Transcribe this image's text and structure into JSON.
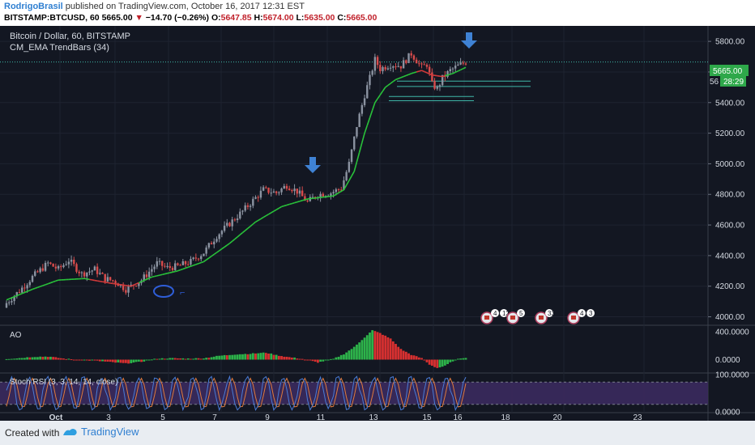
{
  "header": {
    "author": "RodrigoBrasil",
    "published_text": "published on TradingView.com, October 16, 2017 12:31 EST",
    "symbol": "BITSTAMP:BTCUSD, 60",
    "last": "5665.00",
    "change": "−14.70 (−0.26%)",
    "open_label": "O:",
    "open": "5647.85",
    "high_label": "H:",
    "high": "5674.00",
    "low_label": "L:",
    "low": "5635.00",
    "close_label": "C:",
    "close": "5665.00"
  },
  "legend": {
    "line1": "Bitcoin / Dollar, 60, BITSTAMP",
    "line2": "CM_EMA TrendBars (34)"
  },
  "price_badge": {
    "price": "5665.00",
    "prefix": "56",
    "countdown": "28:29"
  },
  "ao_label": "AO",
  "stoch_label": "Stoch RSI (3, 3, 14, 14, close)",
  "footer": {
    "created_with": "Created with",
    "brand": "TradingView"
  },
  "colors": {
    "background": "#131722",
    "up": "#8b93a1",
    "down": "#d84b4b",
    "ema": "#29c23a",
    "ema_down": "#d33a3a",
    "ao_up": "#2db34a",
    "ao_down": "#d83030",
    "stoch_band": "#3b2a5e",
    "stoch_k": "#4a7bd6",
    "stoch_d": "#e07a3c",
    "arrow": "#3f82d4"
  },
  "badges": [
    {
      "label": "4"
    },
    {
      "label": "12"
    },
    {
      "label": "5"
    },
    {
      "label": "33"
    },
    {
      "label": "4"
    },
    {
      "label": "3"
    }
  ],
  "chart_data": {
    "type": "candlestick",
    "price_ticks": [
      "5800.00",
      "5600.00",
      "5400.00",
      "5200.00",
      "5000.00",
      "4800.00",
      "4600.00",
      "4400.00",
      "4200.00",
      "4000.00"
    ],
    "ao_ticks": [
      "400.0000",
      "0.0000"
    ],
    "stoch_ticks": [
      "100.0000",
      "0.0000"
    ],
    "x_ticks": [
      "Oct",
      "3",
      "5",
      "7",
      "9",
      "11",
      "13",
      "15",
      "16",
      "18",
      "20",
      "23"
    ],
    "ylim": [
      3950,
      5880
    ],
    "close_key": [
      [
        0,
        4090
      ],
      [
        5,
        4170
      ],
      [
        10,
        4260
      ],
      [
        16,
        4350
      ],
      [
        20,
        4310
      ],
      [
        24,
        4370
      ],
      [
        29,
        4280
      ],
      [
        34,
        4310
      ],
      [
        38,
        4250
      ],
      [
        42,
        4230
      ],
      [
        46,
        4180
      ],
      [
        52,
        4240
      ],
      [
        58,
        4350
      ],
      [
        62,
        4320
      ],
      [
        66,
        4330
      ],
      [
        71,
        4360
      ],
      [
        76,
        4420
      ],
      [
        81,
        4530
      ],
      [
        86,
        4610
      ],
      [
        91,
        4690
      ],
      [
        95,
        4760
      ],
      [
        99,
        4830
      ],
      [
        104,
        4810
      ],
      [
        108,
        4860
      ],
      [
        112,
        4820
      ],
      [
        116,
        4750
      ],
      [
        120,
        4800
      ],
      [
        125,
        4810
      ],
      [
        129,
        4840
      ],
      [
        132,
        5000
      ],
      [
        135,
        5250
      ],
      [
        138,
        5450
      ],
      [
        140,
        5560
      ],
      [
        142,
        5680
      ],
      [
        144,
        5620
      ],
      [
        148,
        5650
      ],
      [
        152,
        5640
      ],
      [
        156,
        5720
      ],
      [
        160,
        5630
      ],
      [
        162,
        5650
      ],
      [
        164,
        5520
      ],
      [
        166,
        5490
      ],
      [
        168,
        5560
      ],
      [
        171,
        5610
      ],
      [
        174,
        5640
      ],
      [
        177,
        5665
      ]
    ],
    "ema_key": [
      [
        0,
        4110
      ],
      [
        10,
        4180
      ],
      [
        20,
        4240
      ],
      [
        30,
        4250
      ],
      [
        40,
        4220
      ],
      [
        48,
        4200
      ],
      [
        56,
        4260
      ],
      [
        66,
        4300
      ],
      [
        76,
        4360
      ],
      [
        86,
        4480
      ],
      [
        96,
        4620
      ],
      [
        106,
        4720
      ],
      [
        116,
        4770
      ],
      [
        126,
        4790
      ],
      [
        130,
        4830
      ],
      [
        134,
        4950
      ],
      [
        138,
        5200
      ],
      [
        142,
        5400
      ],
      [
        146,
        5500
      ],
      [
        150,
        5550
      ],
      [
        156,
        5590
      ],
      [
        160,
        5610
      ],
      [
        164,
        5580
      ],
      [
        168,
        5570
      ],
      [
        172,
        5590
      ],
      [
        177,
        5630
      ]
    ],
    "ema_down_ranges": [
      [
        32,
        50
      ],
      [
        158,
        168
      ]
    ],
    "hlines": [
      5540,
      5505,
      5440,
      5412
    ],
    "ao_key": [
      [
        0,
        10
      ],
      [
        6,
        25
      ],
      [
        10,
        40
      ],
      [
        16,
        45
      ],
      [
        22,
        15
      ],
      [
        28,
        -5
      ],
      [
        34,
        -15
      ],
      [
        40,
        -35
      ],
      [
        46,
        -55
      ],
      [
        52,
        -30
      ],
      [
        58,
        15
      ],
      [
        64,
        20
      ],
      [
        70,
        15
      ],
      [
        76,
        20
      ],
      [
        82,
        55
      ],
      [
        88,
        75
      ],
      [
        94,
        85
      ],
      [
        100,
        100
      ],
      [
        104,
        65
      ],
      [
        108,
        40
      ],
      [
        114,
        10
      ],
      [
        120,
        -40
      ],
      [
        126,
        10
      ],
      [
        130,
        80
      ],
      [
        134,
        180
      ],
      [
        138,
        320
      ],
      [
        141,
        420
      ],
      [
        144,
        380
      ],
      [
        148,
        300
      ],
      [
        152,
        150
      ],
      [
        156,
        70
      ],
      [
        160,
        20
      ],
      [
        163,
        -70
      ],
      [
        166,
        -120
      ],
      [
        169,
        -90
      ],
      [
        172,
        -20
      ],
      [
        175,
        20
      ],
      [
        177,
        30
      ]
    ],
    "ao_ylim": [
      -180,
      470
    ],
    "stoch_k_period": 7,
    "stoch_overbought": 80,
    "stoch_oversold": 20,
    "last_price": 5665.0
  }
}
